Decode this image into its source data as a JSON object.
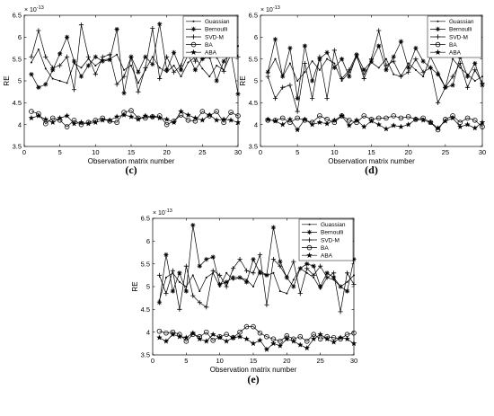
{
  "chart_data": [
    {
      "type": "line",
      "panel_label": "(c)",
      "xlabel": "Observation matrix number",
      "ylabel": "RE",
      "exponent_label": "× 10",
      "exponent": "-13",
      "xlim": [
        0,
        30
      ],
      "ylim": [
        3.5,
        6.5
      ],
      "xticks": [
        "0",
        "5",
        "10",
        "15",
        "20",
        "25",
        "30"
      ],
      "yticks": [
        "3.5",
        "4",
        "4.5",
        "5",
        "5.5",
        "6",
        "6.5"
      ],
      "legend_position": "top-right",
      "x": [
        1,
        2,
        3,
        4,
        5,
        6,
        7,
        8,
        9,
        10,
        11,
        12,
        13,
        14,
        15,
        16,
        17,
        18,
        19,
        20,
        21,
        22,
        23,
        24,
        25,
        26,
        27,
        28,
        29,
        30
      ],
      "series": [
        {
          "name": "Guassian",
          "marker": "dot",
          "values": [
            5.42,
            5.72,
            5.28,
            5.05,
            5.0,
            4.95,
            5.4,
            5.3,
            5.5,
            5.35,
            5.48,
            5.5,
            5.6,
            5.25,
            5.35,
            4.95,
            5.25,
            5.55,
            5.3,
            5.2,
            5.35,
            5.1,
            5.42,
            5.55,
            5.28,
            5.1,
            5.35,
            5.25,
            5.6,
            5.8
          ]
        },
        {
          "name": "Bernoulli",
          "marker": "asterisk",
          "values": [
            5.15,
            4.85,
            4.92,
            5.25,
            5.62,
            6.0,
            5.45,
            5.1,
            5.35,
            5.55,
            5.45,
            5.48,
            6.18,
            4.72,
            5.55,
            5.2,
            5.55,
            5.38,
            6.3,
            5.25,
            5.65,
            5.25,
            5.6,
            5.25,
            5.5,
            5.55,
            5.0,
            5.45,
            5.65,
            4.7
          ]
        },
        {
          "name": "SVD-M",
          "marker": "plus",
          "values": [
            5.55,
            6.15,
            5.55,
            5.3,
            5.35,
            5.55,
            4.8,
            6.28,
            5.55,
            5.15,
            5.55,
            5.6,
            4.92,
            5.1,
            5.55,
            4.75,
            5.3,
            6.2,
            5.05,
            5.55,
            5.2,
            5.35,
            5.85,
            5.45,
            5.82,
            5.85,
            5.55,
            5.22,
            5.85,
            5.55
          ]
        },
        {
          "name": "BA",
          "marker": "circle",
          "values": [
            4.3,
            4.25,
            4.02,
            4.15,
            4.1,
            3.95,
            4.1,
            4.0,
            4.05,
            4.1,
            4.15,
            4.08,
            4.05,
            4.28,
            4.32,
            4.15,
            4.15,
            4.18,
            4.2,
            4.0,
            4.08,
            4.22,
            4.1,
            4.08,
            4.3,
            4.2,
            4.3,
            4.05,
            4.28,
            4.2
          ]
        },
        {
          "name": "ABA",
          "marker": "star",
          "values": [
            4.15,
            4.2,
            4.12,
            4.05,
            4.15,
            4.2,
            4.02,
            4.05,
            4.02,
            4.05,
            4.1,
            4.1,
            4.18,
            4.22,
            4.18,
            4.12,
            4.2,
            4.18,
            4.15,
            4.12,
            4.05,
            4.3,
            4.22,
            4.15,
            4.1,
            4.22,
            4.1,
            4.12,
            4.1,
            4.05
          ]
        }
      ]
    },
    {
      "type": "line",
      "panel_label": "(d)",
      "xlabel": "Observation matrix number",
      "ylabel": "RE",
      "exponent_label": "× 10",
      "exponent": "-13",
      "xlim": [
        0,
        30
      ],
      "ylim": [
        3.5,
        6.5
      ],
      "xticks": [
        "0",
        "5",
        "10",
        "15",
        "20",
        "25",
        "30"
      ],
      "yticks": [
        "3.5",
        "4",
        "4.5",
        "5",
        "5.5",
        "6",
        "6.5"
      ],
      "legend_position": "top-right",
      "x": [
        1,
        2,
        3,
        4,
        5,
        6,
        7,
        8,
        9,
        10,
        11,
        12,
        13,
        14,
        15,
        16,
        17,
        18,
        19,
        20,
        21,
        22,
        23,
        24,
        25,
        26,
        27,
        28,
        29,
        30
      ],
      "series": [
        {
          "name": "Guassian",
          "marker": "dot",
          "values": [
            5.2,
            5.5,
            5.1,
            5.4,
            5.0,
            5.2,
            5.45,
            5.25,
            5.5,
            5.4,
            5.0,
            5.2,
            5.55,
            5.15,
            5.42,
            5.3,
            5.5,
            5.15,
            5.1,
            5.4,
            5.25,
            5.1,
            5.55,
            5.2,
            4.85,
            5.5,
            5.3,
            5.15,
            5.0,
            5.1
          ]
        },
        {
          "name": "Bernoulli",
          "marker": "asterisk",
          "values": [
            5.2,
            5.95,
            5.1,
            5.75,
            4.6,
            5.8,
            5.0,
            5.5,
            5.65,
            5.3,
            5.5,
            5.1,
            5.6,
            5.25,
            5.45,
            5.8,
            5.25,
            5.55,
            5.9,
            5.3,
            5.75,
            5.45,
            5.3,
            5.15,
            4.85,
            4.9,
            5.55,
            5.1,
            5.4,
            4.9
          ]
        },
        {
          "name": "SVD-M",
          "marker": "plus",
          "values": [
            5.1,
            4.6,
            4.85,
            4.9,
            4.3,
            5.4,
            4.6,
            5.55,
            4.6,
            5.7,
            5.05,
            5.25,
            5.6,
            5.05,
            5.5,
            6.15,
            5.35,
            5.45,
            5.1,
            5.2,
            5.5,
            5.2,
            5.3,
            4.5,
            4.85,
            5.1,
            5.4,
            4.85,
            5.25,
            4.95
          ]
        },
        {
          "name": "BA",
          "marker": "circle",
          "values": [
            4.1,
            4.1,
            4.15,
            4.05,
            4.15,
            4.1,
            4.05,
            4.2,
            4.12,
            4.05,
            4.2,
            4.1,
            4.05,
            4.2,
            4.12,
            4.15,
            4.15,
            4.2,
            4.15,
            4.18,
            4.12,
            4.15,
            4.05,
            3.88,
            4.12,
            4.2,
            4.05,
            4.15,
            4.1,
            3.95
          ]
        },
        {
          "name": "ABA",
          "marker": "star",
          "values": [
            4.12,
            4.08,
            4.0,
            4.12,
            3.88,
            4.12,
            4.0,
            4.05,
            4.02,
            4.1,
            4.2,
            3.98,
            4.1,
            3.95,
            4.08,
            4.0,
            3.9,
            3.98,
            3.95,
            4.0,
            4.12,
            4.1,
            4.05,
            3.92,
            4.08,
            4.15,
            3.95,
            4.0,
            3.92,
            4.05
          ]
        }
      ]
    },
    {
      "type": "line",
      "panel_label": "(e)",
      "xlabel": "Observation matrix number",
      "ylabel": "RE",
      "exponent_label": "× 10",
      "exponent": "-13",
      "xlim": [
        0,
        30
      ],
      "ylim": [
        3.5,
        6.5
      ],
      "xticks": [
        "0",
        "5",
        "10",
        "15",
        "20",
        "25",
        "30"
      ],
      "yticks": [
        "3.5",
        "4",
        "4.5",
        "5",
        "5.5",
        "6",
        "6.5"
      ],
      "legend_position": "top-right",
      "x": [
        1,
        2,
        3,
        4,
        5,
        6,
        7,
        8,
        9,
        10,
        11,
        12,
        13,
        14,
        15,
        16,
        17,
        18,
        19,
        20,
        21,
        22,
        23,
        24,
        25,
        26,
        27,
        28,
        29,
        30
      ],
      "series": [
        {
          "name": "Guassian",
          "marker": "dot",
          "values": [
            4.7,
            5.2,
            5.3,
            5.1,
            5.0,
            5.25,
            4.9,
            5.2,
            5.3,
            5.0,
            5.3,
            5.15,
            5.2,
            5.15,
            5.0,
            5.35,
            5.25,
            5.3,
            4.9,
            4.85,
            5.15,
            5.4,
            5.3,
            5.2,
            4.95,
            5.2,
            5.15,
            5.0,
            5.1,
            5.25
          ]
        },
        {
          "name": "Bernoulli",
          "marker": "asterisk",
          "values": [
            4.65,
            5.7,
            4.9,
            5.3,
            4.9,
            6.35,
            5.45,
            5.6,
            5.65,
            5.05,
            5.1,
            5.2,
            5.2,
            5.1,
            5.6,
            5.3,
            5.25,
            6.3,
            5.55,
            5.2,
            5.0,
            5.4,
            5.5,
            5.45,
            5.0,
            5.3,
            5.2,
            5.0,
            4.9,
            5.6
          ]
        },
        {
          "name": "SVD-M",
          "marker": "plus",
          "values": [
            5.25,
            4.85,
            5.35,
            4.5,
            5.45,
            4.8,
            4.65,
            4.55,
            5.35,
            5.25,
            5.0,
            5.4,
            5.6,
            5.35,
            5.3,
            5.7,
            4.6,
            5.6,
            5.45,
            5.2,
            5.55,
            4.85,
            5.4,
            5.25,
            5.45,
            5.2,
            5.3,
            4.45,
            5.3,
            5.05
          ]
        },
        {
          "name": "BA",
          "marker": "circle",
          "values": [
            4.02,
            3.98,
            4.0,
            3.95,
            3.8,
            3.95,
            3.9,
            4.0,
            3.82,
            3.9,
            3.95,
            3.88,
            4.0,
            4.12,
            4.12,
            3.98,
            3.9,
            3.85,
            3.8,
            3.92,
            3.85,
            3.9,
            3.8,
            3.95,
            3.85,
            3.9,
            3.88,
            3.85,
            3.95,
            3.98
          ]
        },
        {
          "name": "ABA",
          "marker": "star",
          "values": [
            3.88,
            3.8,
            3.95,
            3.9,
            3.88,
            3.98,
            3.85,
            3.8,
            3.95,
            3.88,
            3.8,
            3.88,
            3.9,
            3.85,
            3.75,
            3.82,
            3.62,
            3.75,
            3.7,
            3.85,
            3.8,
            3.72,
            3.65,
            3.85,
            3.95,
            3.85,
            3.78,
            3.88,
            3.85,
            3.75
          ]
        }
      ]
    }
  ]
}
